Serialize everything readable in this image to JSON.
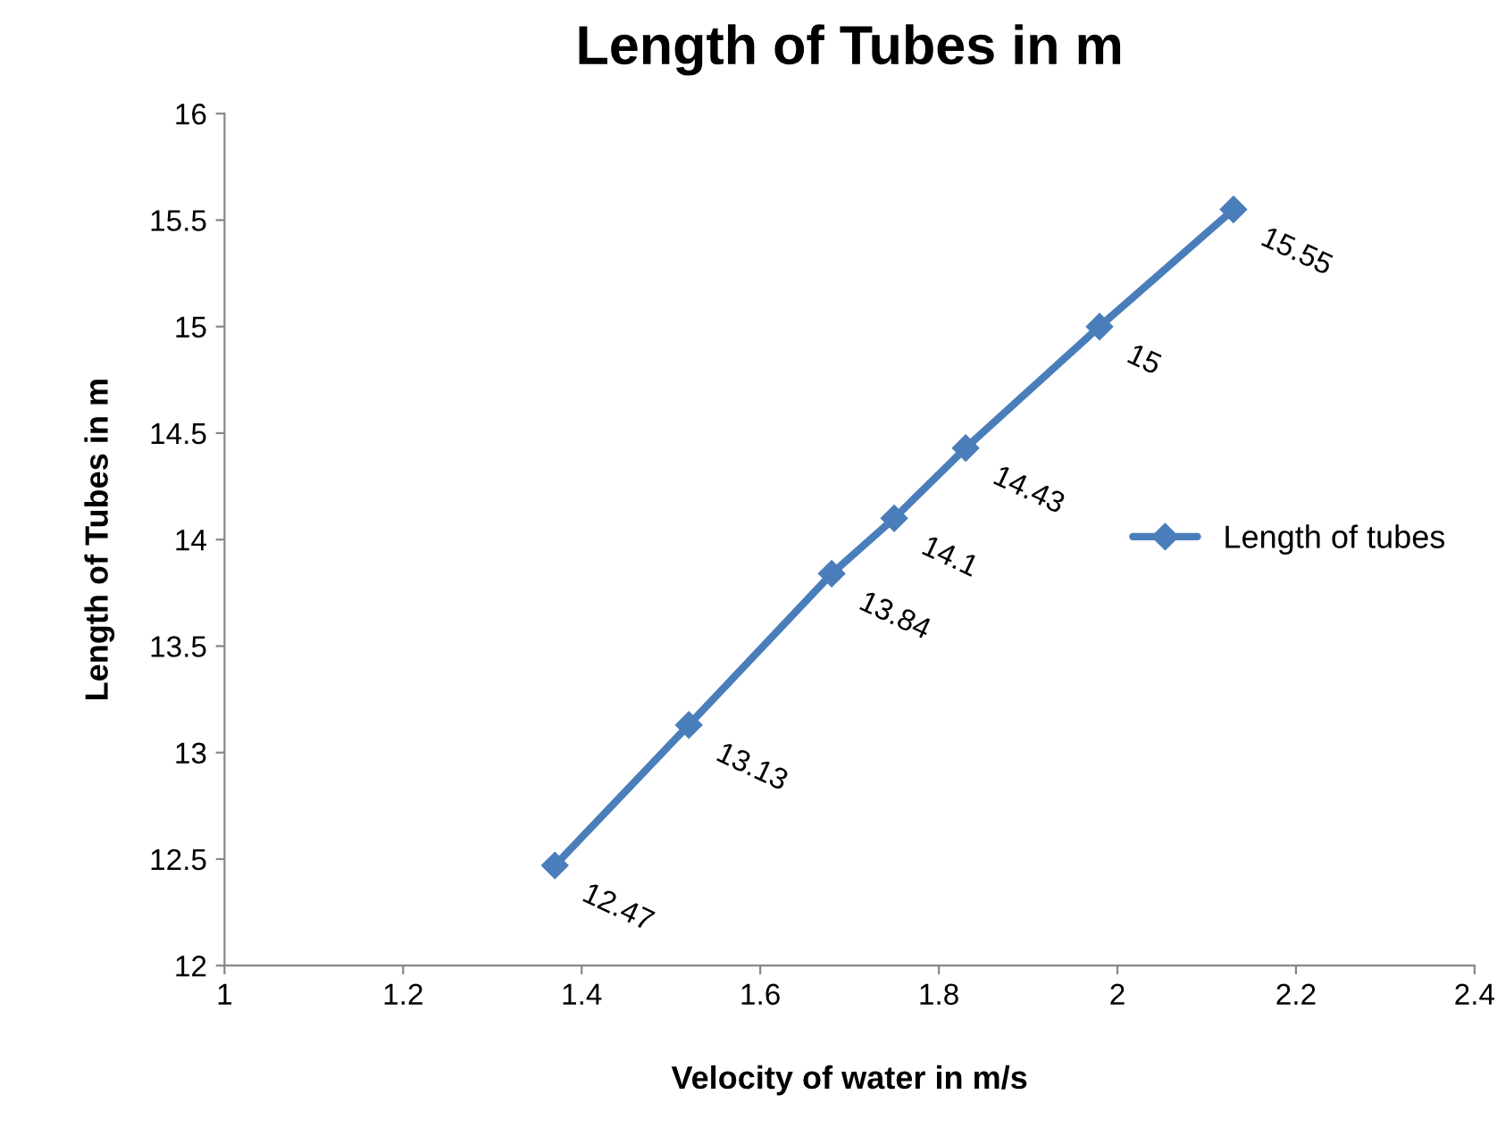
{
  "chart_data": {
    "type": "line",
    "title": "Length of Tubes in m",
    "xlabel": "Velocity of water in m/s",
    "ylabel": "Length of Tubes in m",
    "x": [
      1.37,
      1.52,
      1.68,
      1.75,
      1.83,
      1.98,
      2.13
    ],
    "series": [
      {
        "name": "Length of tubes",
        "color": "#4a7ebb",
        "values": [
          12.47,
          13.13,
          13.84,
          14.1,
          14.43,
          15,
          15.55
        ]
      }
    ],
    "xlim": [
      1,
      2.4
    ],
    "xticks": [
      1,
      1.2,
      1.4,
      1.6,
      1.8,
      2,
      2.2,
      2.4
    ],
    "ylim": [
      12,
      16
    ],
    "yticks": [
      12,
      12.5,
      13,
      13.5,
      14,
      14.5,
      15,
      15.5,
      16
    ],
    "data_labels": true,
    "grid": false,
    "legend": "center right",
    "marker": "diamond",
    "line_style": "solid"
  }
}
